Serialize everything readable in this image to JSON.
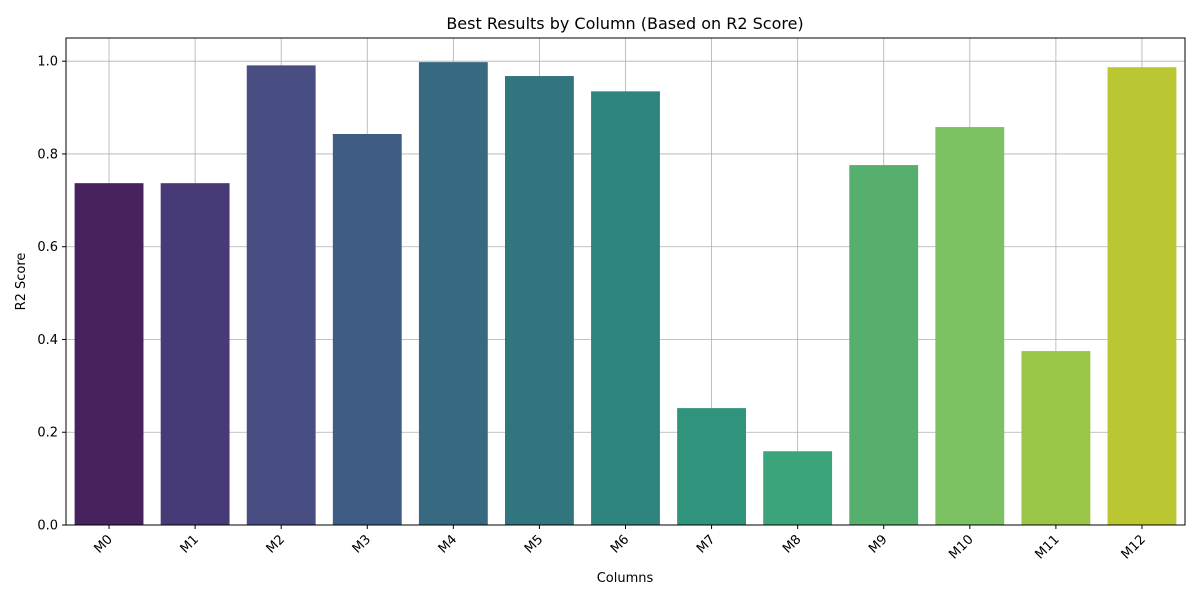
{
  "chart_data": {
    "type": "bar",
    "title": "Best Results by Column (Based on R2 Score)",
    "xlabel": "Columns",
    "ylabel": "R2 Score",
    "categories": [
      "M0",
      "M1",
      "M2",
      "M3",
      "M4",
      "M5",
      "M6",
      "M7",
      "M8",
      "M9",
      "M10",
      "M11",
      "M12"
    ],
    "values": [
      0.737,
      0.737,
      0.991,
      0.843,
      0.998,
      0.968,
      0.935,
      0.252,
      0.159,
      0.776,
      0.858,
      0.375,
      0.987
    ],
    "colors": [
      "#48215f",
      "#473a76",
      "#484e82",
      "#3e5c84",
      "#376a80",
      "#31767f",
      "#2e847e",
      "#30937c",
      "#3ba47a",
      "#57af6d",
      "#7cc162",
      "#9ac648",
      "#bac632"
    ],
    "ylim": [
      0,
      1.05
    ],
    "yticks": [
      "0.0",
      "0.2",
      "0.4",
      "0.6",
      "0.8",
      "1.0"
    ],
    "grid": true,
    "xtick_rotation": 45
  }
}
